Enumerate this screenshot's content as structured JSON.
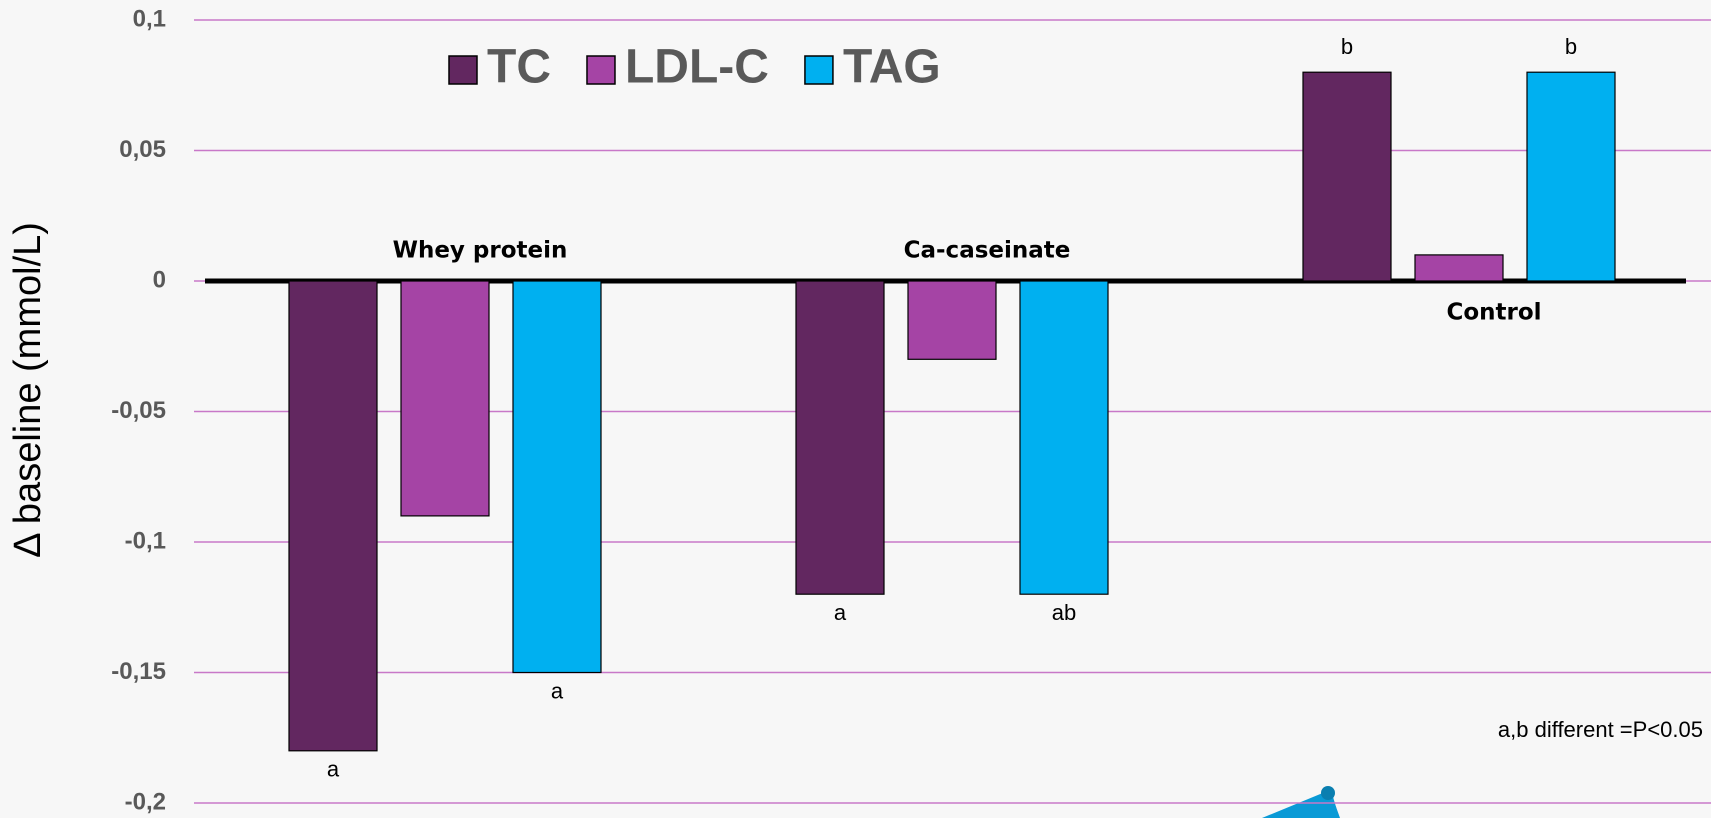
{
  "chart_data": {
    "type": "bar",
    "ylabel": "Δ baseline (mmol/L)",
    "categories": [
      "Whey protein",
      "Ca-caseinate",
      "Control"
    ],
    "series": [
      {
        "name": "TC",
        "color": "#622760",
        "values": [
          -0.18,
          -0.12,
          0.08
        ],
        "letters": [
          "a",
          "a",
          "b"
        ]
      },
      {
        "name": "LDL-C",
        "color": "#a544a5",
        "values": [
          -0.09,
          -0.03,
          0.01
        ]
      },
      {
        "name": "TAG",
        "color": "#00b0f0",
        "values": [
          -0.15,
          -0.12,
          0.08
        ],
        "letters": [
          "a",
          "ab",
          "b"
        ]
      }
    ],
    "ylim": [
      -0.2,
      0.1
    ],
    "yticks": [
      {
        "value": 0.1,
        "label": "0,1"
      },
      {
        "value": 0.05,
        "label": "0,05"
      },
      0,
      {
        "value": -0.05,
        "label": "-0,05"
      },
      {
        "value": -0.1,
        "label": "-0,1"
      },
      {
        "value": -0.15,
        "label": "-0,15"
      },
      {
        "value": -0.2,
        "label": "-0,2"
      }
    ],
    "grid": true,
    "grid_color": "#c878c8",
    "legend": "top-left",
    "note": "a,b different =P<0.05"
  }
}
